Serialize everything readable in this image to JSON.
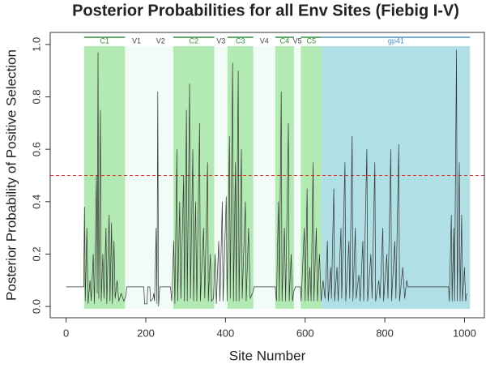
{
  "chart_data": {
    "type": "line",
    "title": "Posterior Probabilities for all Env Sites (Fiebig I-V)",
    "x_label": "Site Number",
    "y_label": "Posterior Probability of Positive Selection",
    "xlim": [
      -40,
      1050
    ],
    "ylim": [
      -0.043,
      1.046
    ],
    "xticks": [
      0,
      200,
      400,
      600,
      800,
      1000
    ],
    "yticks": [
      {
        "value": 0,
        "label": "0.0"
      },
      0.2,
      0.4,
      0.6,
      0.8,
      {
        "value": 1,
        "label": "1.0"
      }
    ],
    "threshold": {
      "value": 0.5,
      "color": "#e8312a"
    },
    "regions": [
      {
        "name": "C1",
        "start": 45,
        "end": 148,
        "color": "#b3e9b3",
        "label_color": "#2f8f3f",
        "line": true
      },
      {
        "name": "V1",
        "start": 148,
        "end": 205,
        "color": "#f1fcf7",
        "label_color": "#444444",
        "line": false
      },
      {
        "name": "V2",
        "start": 205,
        "end": 269,
        "color": "#f1fcf7",
        "label_color": "#444444",
        "line": false
      },
      {
        "name": "C2",
        "start": 269,
        "end": 372,
        "color": "#b3e9b3",
        "label_color": "#2f8f3f",
        "line": true
      },
      {
        "name": "V3",
        "start": 372,
        "end": 405,
        "color": "#f1fcf7",
        "label_color": "#444444",
        "line": false
      },
      {
        "name": "C3",
        "start": 405,
        "end": 470,
        "color": "#b3e9b3",
        "label_color": "#2f8f3f",
        "line": true
      },
      {
        "name": "V4",
        "start": 470,
        "end": 525,
        "color": "#f1fcf7",
        "label_color": "#444444",
        "line": false
      },
      {
        "name": "C4",
        "start": 525,
        "end": 572,
        "color": "#b3e9b3",
        "label_color": "#2f8f3f",
        "line": true
      },
      {
        "name": "V5",
        "start": 572,
        "end": 589,
        "color": "#f1fcf7",
        "label_color": "#444444",
        "line": false
      },
      {
        "name": "C5",
        "start": 589,
        "end": 642,
        "color": "#b3e9b3",
        "label_color": "#2f8f3f",
        "line": true
      },
      {
        "name": "gp41",
        "start": 642,
        "end": 1014,
        "color": "#b1dfe6",
        "label_color": "#4a8fc4",
        "line": true
      }
    ],
    "color": "#333333",
    "x": [
      0,
      44,
      46,
      48,
      52,
      55,
      60,
      63,
      68,
      71,
      76,
      78,
      80,
      82,
      86,
      88,
      92,
      95,
      100,
      102,
      108,
      110,
      114,
      116,
      120,
      123,
      128,
      132,
      138,
      145,
      150,
      152,
      195,
      197,
      203,
      205,
      210,
      212,
      218,
      220,
      222,
      226,
      228,
      230,
      232,
      235,
      262,
      265,
      270,
      273,
      278,
      280,
      285,
      288,
      295,
      297,
      302,
      304,
      310,
      312,
      318,
      320,
      325,
      328,
      335,
      337,
      345,
      348,
      355,
      357,
      362,
      365,
      370,
      374,
      377,
      383,
      386,
      392,
      394,
      402,
      404,
      410,
      412,
      418,
      420,
      425,
      427,
      432,
      434,
      440,
      442,
      450,
      452,
      458,
      462,
      468,
      472,
      525,
      528,
      533,
      535,
      540,
      542,
      548,
      551,
      558,
      560,
      565,
      568,
      572,
      576,
      588,
      590,
      598,
      600,
      605,
      607,
      612,
      615,
      620,
      622,
      628,
      631,
      636,
      640,
      645,
      650,
      656,
      658,
      664,
      666,
      672,
      674,
      680,
      683,
      690,
      692,
      700,
      702,
      710,
      712,
      718,
      720,
      726,
      728,
      735,
      738,
      745,
      747,
      755,
      757,
      765,
      768,
      775,
      777,
      785,
      788,
      795,
      797,
      805,
      808,
      815,
      817,
      825,
      828,
      835,
      837,
      845,
      850,
      855,
      858,
      960,
      962,
      967,
      969,
      973,
      975,
      980,
      982,
      987,
      989,
      993,
      995,
      1000,
      1003,
      1006
    ],
    "values": [
      0.075,
      0.075,
      0.38,
      0.02,
      0.3,
      0.01,
      0.1,
      0.02,
      0.2,
      0.01,
      0.5,
      0.05,
      0.97,
      0.03,
      0.75,
      0.02,
      0.2,
      0.03,
      0.3,
      0.01,
      0.35,
      0.02,
      0.32,
      0.01,
      0.25,
      0.03,
      0.1,
      0.02,
      0.05,
      0.02,
      0.04,
      0.075,
      0.075,
      0.01,
      0.01,
      0.075,
      0.075,
      0.02,
      0.03,
      0.05,
      0.02,
      0.3,
      0.01,
      0.82,
      0.0,
      0.075,
      0.075,
      0.02,
      0.25,
      0.01,
      0.6,
      0.02,
      0.4,
      0.03,
      0.5,
      0.02,
      0.75,
      0.02,
      0.85,
      0.03,
      0.6,
      0.02,
      0.4,
      0.02,
      0.7,
      0.02,
      0.3,
      0.03,
      0.55,
      0.02,
      0.2,
      0.02,
      0.03,
      0.2,
      0.01,
      0.25,
      0.02,
      0.4,
      0.02,
      0.42,
      0.02,
      0.65,
      0.03,
      0.93,
      0.02,
      0.55,
      0.02,
      0.9,
      0.02,
      0.6,
      0.03,
      0.4,
      0.02,
      0.3,
      0.03,
      0.05,
      0.075,
      0.075,
      0.02,
      0.4,
      0.02,
      0.82,
      0.02,
      0.3,
      0.02,
      0.7,
      0.02,
      0.2,
      0.02,
      0.06,
      0.075,
      0.075,
      0.02,
      0.3,
      0.02,
      0.45,
      0.02,
      0.15,
      0.02,
      0.55,
      0.02,
      0.3,
      0.02,
      0.2,
      0.02,
      0.1,
      0.03,
      0.25,
      0.02,
      0.15,
      0.03,
      0.45,
      0.02,
      0.15,
      0.02,
      0.3,
      0.03,
      0.55,
      0.02,
      0.25,
      0.03,
      0.65,
      0.02,
      0.3,
      0.03,
      0.12,
      0.02,
      0.25,
      0.02,
      0.6,
      0.02,
      0.2,
      0.03,
      0.55,
      0.02,
      0.1,
      0.03,
      0.3,
      0.02,
      0.2,
      0.03,
      0.6,
      0.02,
      0.25,
      0.03,
      0.62,
      0.02,
      0.15,
      0.03,
      0.1,
      0.075,
      0.075,
      0.02,
      0.35,
      0.02,
      0.3,
      0.02,
      0.98,
      0.02,
      0.55,
      0.02,
      0.35,
      0.02,
      0.15,
      0.02,
      0.05
    ]
  }
}
